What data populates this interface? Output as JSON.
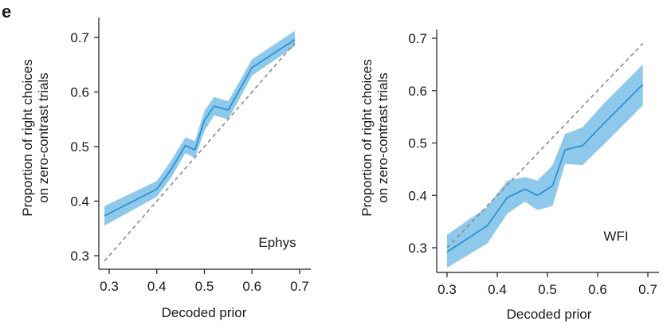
{
  "panel_label": "e",
  "chart_data": [
    {
      "type": "line",
      "inset_label": "Ephys",
      "xlabel": "Decoded prior",
      "ylabel": [
        "Proportion of right choices",
        "on zero-contrast trials"
      ],
      "xlim": [
        0.3,
        0.7
      ],
      "ylim": [
        0.3,
        0.7
      ],
      "xticks": [
        "0.3",
        "0.4",
        "0.5",
        "0.6",
        "0.7"
      ],
      "yticks": [
        "0.3",
        "0.4",
        "0.5",
        "0.6",
        "0.7"
      ],
      "series": [
        {
          "kind": "mean",
          "color": "#2b93d1",
          "band_color": "#8ec9ec",
          "x": [
            0.29,
            0.4,
            0.43,
            0.46,
            0.48,
            0.5,
            0.52,
            0.55,
            0.6,
            0.69
          ],
          "y": [
            0.373,
            0.422,
            0.458,
            0.502,
            0.494,
            0.548,
            0.574,
            0.567,
            0.645,
            0.696
          ],
          "lower": [
            0.355,
            0.408,
            0.443,
            0.488,
            0.479,
            0.528,
            0.557,
            0.55,
            0.63,
            0.684
          ],
          "upper": [
            0.391,
            0.437,
            0.474,
            0.517,
            0.51,
            0.565,
            0.591,
            0.583,
            0.66,
            0.712
          ]
        },
        {
          "kind": "reference",
          "color": "#8a8a8a",
          "dash": true,
          "x": [
            0.29,
            0.69
          ],
          "y": [
            0.29,
            0.69
          ]
        }
      ]
    },
    {
      "type": "line",
      "inset_label": "WFI",
      "xlabel": "Decoded prior",
      "ylabel": [
        "Proportion of right choices",
        "on zero-contrast trials"
      ],
      "xlim": [
        0.3,
        0.7
      ],
      "ylim": [
        0.3,
        0.7
      ],
      "xticks": [
        "0.3",
        "0.4",
        "0.5",
        "0.6",
        "0.7"
      ],
      "yticks": [
        "0.3",
        "0.4",
        "0.5",
        "0.6",
        "0.7"
      ],
      "series": [
        {
          "kind": "mean",
          "color": "#2b93d1",
          "band_color": "#8ec9ec",
          "x": [
            0.3,
            0.38,
            0.42,
            0.455,
            0.48,
            0.51,
            0.535,
            0.57,
            0.61,
            0.69
          ],
          "y": [
            0.292,
            0.342,
            0.396,
            0.412,
            0.4,
            0.418,
            0.487,
            0.495,
            0.535,
            0.612
          ],
          "lower": [
            0.262,
            0.308,
            0.365,
            0.388,
            0.372,
            0.38,
            0.46,
            0.458,
            0.495,
            0.572
          ],
          "upper": [
            0.325,
            0.378,
            0.428,
            0.435,
            0.428,
            0.457,
            0.517,
            0.53,
            0.573,
            0.65
          ]
        },
        {
          "kind": "reference",
          "color": "#8a8a8a",
          "dash": true,
          "x": [
            0.3,
            0.69
          ],
          "y": [
            0.3,
            0.69
          ]
        }
      ]
    }
  ]
}
